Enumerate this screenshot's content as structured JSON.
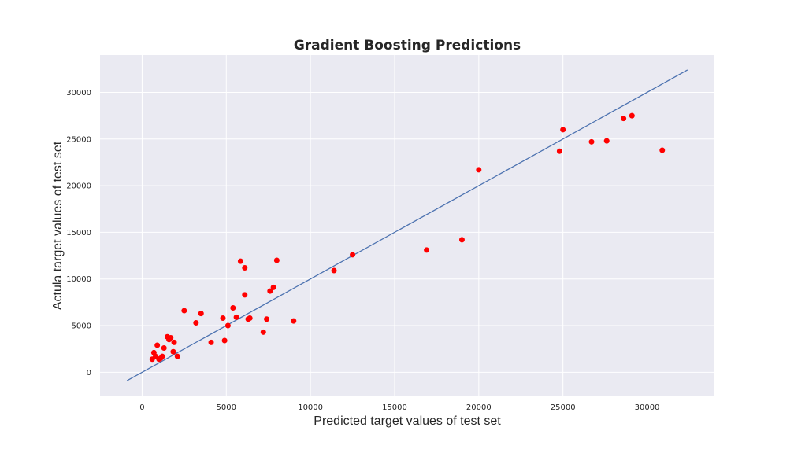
{
  "chart_data": {
    "type": "scatter",
    "title": "Gradient Boosting Predictions",
    "xlabel": "Predicted target values of test set",
    "ylabel": "Actula target values of test set",
    "xlim": [
      -2500,
      34000
    ],
    "ylim": [
      -2500,
      34000
    ],
    "xticks": [
      0,
      5000,
      10000,
      15000,
      20000,
      25000,
      30000
    ],
    "yticks": [
      0,
      5000,
      10000,
      15000,
      20000,
      25000,
      30000
    ],
    "grid": true,
    "background": "#eaeaf2",
    "point_color": "#ff0000",
    "line_color": "#4c72b0",
    "reference_line": {
      "x": [
        -900,
        32400
      ],
      "y": [
        -900,
        32400
      ]
    },
    "points": [
      {
        "x": 600,
        "y": 1400
      },
      {
        "x": 700,
        "y": 2100
      },
      {
        "x": 800,
        "y": 1700
      },
      {
        "x": 900,
        "y": 2900
      },
      {
        "x": 1000,
        "y": 1400
      },
      {
        "x": 1100,
        "y": 1500
      },
      {
        "x": 1200,
        "y": 1700
      },
      {
        "x": 1300,
        "y": 2600
      },
      {
        "x": 1500,
        "y": 3800
      },
      {
        "x": 1600,
        "y": 3500
      },
      {
        "x": 1700,
        "y": 3700
      },
      {
        "x": 1850,
        "y": 2200
      },
      {
        "x": 1900,
        "y": 3200
      },
      {
        "x": 2100,
        "y": 1700
      },
      {
        "x": 2500,
        "y": 6600
      },
      {
        "x": 3200,
        "y": 5300
      },
      {
        "x": 3500,
        "y": 6300
      },
      {
        "x": 4100,
        "y": 3200
      },
      {
        "x": 4800,
        "y": 5800
      },
      {
        "x": 4900,
        "y": 3400
      },
      {
        "x": 5100,
        "y": 5000
      },
      {
        "x": 5400,
        "y": 6900
      },
      {
        "x": 5600,
        "y": 5900
      },
      {
        "x": 5850,
        "y": 11900
      },
      {
        "x": 6100,
        "y": 11200
      },
      {
        "x": 6100,
        "y": 8300
      },
      {
        "x": 6300,
        "y": 5700
      },
      {
        "x": 6400,
        "y": 5800
      },
      {
        "x": 7200,
        "y": 4300
      },
      {
        "x": 7400,
        "y": 5700
      },
      {
        "x": 7600,
        "y": 8700
      },
      {
        "x": 7800,
        "y": 9100
      },
      {
        "x": 8000,
        "y": 12000
      },
      {
        "x": 9000,
        "y": 5500
      },
      {
        "x": 11400,
        "y": 10900
      },
      {
        "x": 12500,
        "y": 12600
      },
      {
        "x": 16900,
        "y": 13100
      },
      {
        "x": 19000,
        "y": 14200
      },
      {
        "x": 20000,
        "y": 21700
      },
      {
        "x": 24800,
        "y": 23700
      },
      {
        "x": 25000,
        "y": 26000
      },
      {
        "x": 26700,
        "y": 24700
      },
      {
        "x": 27600,
        "y": 24800
      },
      {
        "x": 28600,
        "y": 27200
      },
      {
        "x": 29100,
        "y": 27500
      },
      {
        "x": 30900,
        "y": 23800
      }
    ]
  }
}
